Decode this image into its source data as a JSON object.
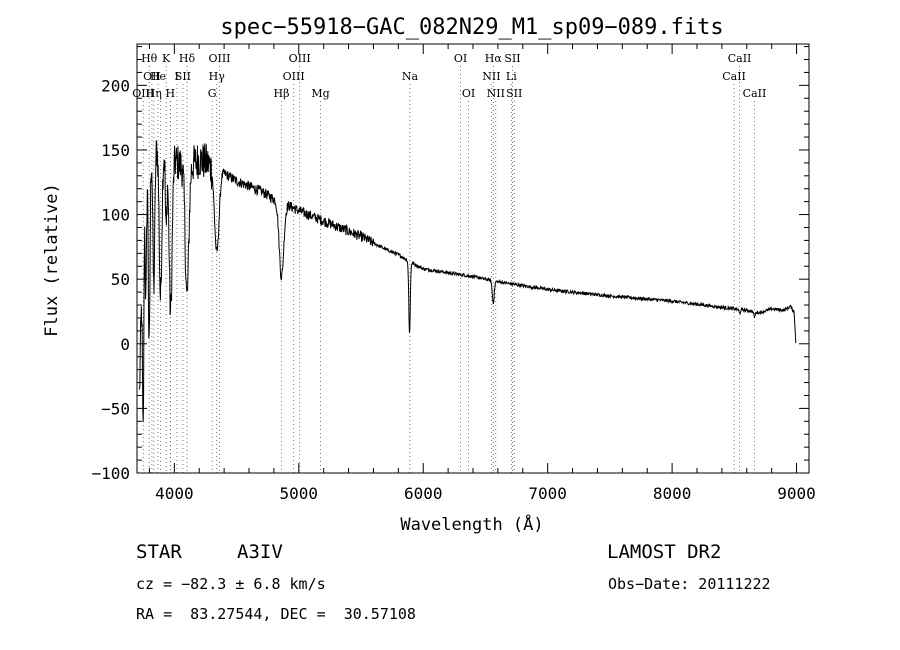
{
  "chart_data": {
    "type": "line",
    "title": "spec−55918−GAC_082N29_M1_sp09−089.fits",
    "xlabel": "Wavelength (Å)",
    "ylabel": "Flux (relative)",
    "xlim": [
      3700,
      9100
    ],
    "ylim": [
      -100,
      232
    ],
    "xticks": [
      4000,
      5000,
      6000,
      7000,
      8000,
      9000
    ],
    "yticks": [
      -100,
      -50,
      0,
      50,
      100,
      150,
      200
    ],
    "grid": false,
    "line_color": "#000000",
    "line_markers": [
      {
        "wl": 3750,
        "label": "OIII",
        "row": 2
      },
      {
        "wl": 3798,
        "label": "Hθ",
        "row": 0
      },
      {
        "wl": 3820,
        "label": "OII",
        "row": 1
      },
      {
        "wl": 3835,
        "label": "Hη",
        "row": 2
      },
      {
        "wl": 3869,
        "label": "He",
        "row": 1
      },
      {
        "wl": 3889,
        "label": "",
        "row": 2
      },
      {
        "wl": 3934,
        "label": "K",
        "row": 0
      },
      {
        "wl": 3968,
        "label": "H",
        "row": 2
      },
      {
        "wl": 3970,
        "label": "",
        "row": 2
      },
      {
        "wl": 4020,
        "label": "I",
        "row": 1
      },
      {
        "wl": 4069,
        "label": "SII",
        "row": 1
      },
      {
        "wl": 4102,
        "label": "Hδ",
        "row": 0
      },
      {
        "wl": 4304,
        "label": "G",
        "row": 2
      },
      {
        "wl": 4341,
        "label": "Hγ",
        "row": 1
      },
      {
        "wl": 4363,
        "label": "OIII",
        "row": 0
      },
      {
        "wl": 4861,
        "label": "Hβ",
        "row": 2
      },
      {
        "wl": 4959,
        "label": "OIII",
        "row": 1
      },
      {
        "wl": 5007,
        "label": "OIII",
        "row": 0
      },
      {
        "wl": 5175,
        "label": "Mg",
        "row": 2
      },
      {
        "wl": 5893,
        "label": "Na",
        "row": 1
      },
      {
        "wl": 6300,
        "label": "OI",
        "row": 0
      },
      {
        "wl": 6364,
        "label": "OI",
        "row": 2
      },
      {
        "wl": 6548,
        "label": "NII",
        "row": 1
      },
      {
        "wl": 6563,
        "label": "Hα",
        "row": 0
      },
      {
        "wl": 6583,
        "label": "NII",
        "row": 2
      },
      {
        "wl": 6708,
        "label": "Li",
        "row": 1
      },
      {
        "wl": 6717,
        "label": "SII",
        "row": 0
      },
      {
        "wl": 6731,
        "label": "SII",
        "row": 2
      },
      {
        "wl": 8498,
        "label": "CaII",
        "row": 1
      },
      {
        "wl": 8542,
        "label": "CaII",
        "row": 0
      },
      {
        "wl": 8662,
        "label": "CaII",
        "row": 2
      }
    ],
    "continuum": [
      [
        3720,
        -40
      ],
      [
        3760,
        150
      ],
      [
        3800,
        155
      ],
      [
        3900,
        150
      ],
      [
        4000,
        142
      ],
      [
        4100,
        135
      ],
      [
        4200,
        143
      ],
      [
        4300,
        138
      ],
      [
        4400,
        132
      ],
      [
        4500,
        126
      ],
      [
        4600,
        122
      ],
      [
        4700,
        118
      ],
      [
        4800,
        112
      ],
      [
        4900,
        108
      ],
      [
        5000,
        103
      ],
      [
        5100,
        99
      ],
      [
        5200,
        95
      ],
      [
        5300,
        91
      ],
      [
        5400,
        87
      ],
      [
        5500,
        83
      ],
      [
        5600,
        78
      ],
      [
        5700,
        73
      ],
      [
        5800,
        69
      ],
      [
        5900,
        63
      ],
      [
        6000,
        58
      ],
      [
        6200,
        55
      ],
      [
        6400,
        52
      ],
      [
        6600,
        48
      ],
      [
        6800,
        45
      ],
      [
        7000,
        42
      ],
      [
        7200,
        40
      ],
      [
        7500,
        37
      ],
      [
        8000,
        33
      ],
      [
        8500,
        27
      ],
      [
        8600,
        26
      ],
      [
        8700,
        24
      ],
      [
        8800,
        27
      ],
      [
        8900,
        26
      ],
      [
        8950,
        29
      ],
      [
        8980,
        25
      ],
      [
        8995,
        0
      ]
    ],
    "absorptions": [
      {
        "wl": 3750,
        "depth": 170,
        "width": 6
      },
      {
        "wl": 3771,
        "depth": 120,
        "width": 6
      },
      {
        "wl": 3798,
        "depth": 160,
        "width": 7
      },
      {
        "wl": 3835,
        "depth": 110,
        "width": 8
      },
      {
        "wl": 3889,
        "depth": 115,
        "width": 10
      },
      {
        "wl": 3934,
        "depth": 60,
        "width": 6
      },
      {
        "wl": 3970,
        "depth": 120,
        "width": 12
      },
      {
        "wl": 4102,
        "depth": 100,
        "width": 14
      },
      {
        "wl": 4341,
        "depth": 65,
        "width": 18
      },
      {
        "wl": 4861,
        "depth": 58,
        "width": 18
      },
      {
        "wl": 5890,
        "depth": 55,
        "width": 6
      },
      {
        "wl": 6563,
        "depth": 17,
        "width": 8
      },
      {
        "wl": 8542,
        "depth": 3,
        "width": 6
      },
      {
        "wl": 8662,
        "depth": 4,
        "width": 6
      }
    ]
  },
  "info": {
    "object_class": "STAR",
    "subclass": "A3IV",
    "survey": "LAMOST DR2",
    "cz_line": "cz = −82.3 ± 6.8 km/s",
    "obs_date_line": "Obs−Date: 20111222",
    "coords_line": "RA =  83.27544, DEC =  30.57108"
  }
}
